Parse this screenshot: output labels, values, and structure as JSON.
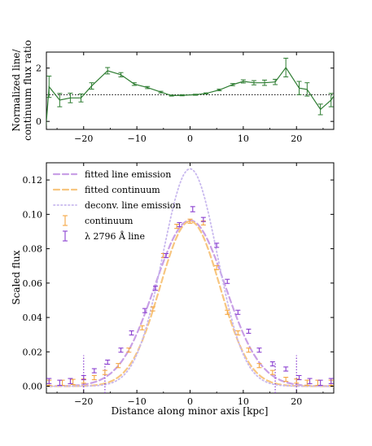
{
  "chart_data": [
    {
      "type": "line",
      "xlim": [
        -27,
        27
      ],
      "ylim": [
        -0.3,
        2.6
      ],
      "ylabel": [
        "Normalized line/",
        "continuum flux ratio"
      ],
      "xticks": [
        -20,
        -10,
        0,
        10,
        20
      ],
      "xtick_labels": [
        "−20",
        "−10",
        "0",
        "10",
        "20"
      ],
      "yticks": [
        0,
        2
      ],
      "ytick_labels": [
        "0",
        "2"
      ],
      "reference_line": 1.0,
      "series": [
        {
          "x": [
            -26.5,
            -24.5,
            -22.5,
            -20.5,
            -18.5,
            -15.5,
            -13,
            -10.5,
            -8,
            -5.5,
            -3.5,
            -1.5,
            1,
            3,
            5.5,
            8,
            10,
            12,
            14,
            16,
            18,
            20.5,
            22,
            24.5,
            26.5
          ],
          "y": [
            1.3,
            0.8,
            0.88,
            0.88,
            1.33,
            1.9,
            1.75,
            1.4,
            1.27,
            1.1,
            0.97,
            0.98,
            1.0,
            1.05,
            1.18,
            1.38,
            1.5,
            1.45,
            1.45,
            1.48,
            2.02,
            1.25,
            1.2,
            0.45,
            0.8
          ],
          "err": [
            0.4,
            0.25,
            0.18,
            0.15,
            0.12,
            0.12,
            0.08,
            0.05,
            0.04,
            0.03,
            0.02,
            0.02,
            0.02,
            0.02,
            0.03,
            0.04,
            0.06,
            0.08,
            0.1,
            0.1,
            0.35,
            0.25,
            0.25,
            0.2,
            0.25
          ]
        }
      ]
    },
    {
      "type": "line",
      "xlabel": "Distance along minor axis [kpc]",
      "ylabel": "Scaled flux",
      "xlim": [
        -27,
        27
      ],
      "ylim": [
        -0.004,
        0.13
      ],
      "xticks": [
        -20,
        -10,
        0,
        10,
        20
      ],
      "xtick_labels": [
        "−20",
        "−10",
        "0",
        "10",
        "20"
      ],
      "yticks": [
        0.0,
        0.02,
        0.04,
        0.06,
        0.08,
        0.1,
        0.12
      ],
      "ytick_labels": [
        "0.00",
        "0.02",
        "0.04",
        "0.06",
        "0.08",
        "0.10",
        "0.12"
      ],
      "legend_position": "upper-left",
      "legend": [
        "fitted line emission",
        "fitted continuum",
        "deconv. line emission",
        "continuum",
        "λ 2796 Å line"
      ],
      "curves": [
        {
          "name": "fitted line emission",
          "amplitude": 0.0965,
          "sigma": 6.6
        },
        {
          "name": "fitted continuum",
          "amplitude": 0.096,
          "sigma": 5.6
        },
        {
          "name": "deconv. line emission",
          "amplitude": 0.1265,
          "sigma": 5.1
        }
      ],
      "vertical_markers": [
        {
          "x": [
            -20,
            20
          ],
          "ymax": 0.018
        },
        {
          "x": [
            -16,
            16
          ],
          "ymax": 0.014
        }
      ],
      "continuum_points": {
        "x": [
          -26.5,
          -24,
          -22,
          -20,
          -18,
          -16,
          -13.5,
          -11.5,
          -9,
          -7,
          -5,
          -2.5,
          0,
          2.5,
          5,
          7,
          9,
          11,
          13,
          15.5,
          18,
          20,
          22,
          24,
          26.5
        ],
        "y": [
          0.002,
          0.002,
          0.0025,
          0.003,
          0.005,
          0.008,
          0.012,
          0.021,
          0.034,
          0.045,
          0.076,
          0.093,
          0.096,
          0.095,
          0.069,
          0.043,
          0.031,
          0.021,
          0.012,
          0.008,
          0.004,
          0.003,
          0.002,
          0.002,
          0.002
        ],
        "err": [
          0.0015,
          0.0015,
          0.0015,
          0.0012,
          0.0012,
          0.0012,
          0.0012,
          0.0012,
          0.0012,
          0.0012,
          0.0012,
          0.0012,
          0.0012,
          0.0012,
          0.0012,
          0.0012,
          0.0012,
          0.0012,
          0.0012,
          0.0012,
          0.0012,
          0.0012,
          0.0015,
          0.0015,
          0.0015
        ]
      },
      "line_points": {
        "x": [
          -26.5,
          -24.5,
          -22.5,
          -20,
          -18,
          -15.5,
          -13,
          -11,
          -8.5,
          -6.5,
          -4.5,
          -2,
          0.5,
          2.5,
          5,
          7,
          9,
          11,
          13,
          15.5,
          18,
          20.5,
          22.5,
          24.5,
          26.5
        ],
        "y": [
          0.003,
          0.002,
          0.003,
          0.005,
          0.009,
          0.014,
          0.021,
          0.031,
          0.044,
          0.057,
          0.076,
          0.094,
          0.103,
          0.097,
          0.082,
          0.061,
          0.043,
          0.032,
          0.021,
          0.013,
          0.01,
          0.005,
          0.003,
          0.002,
          0.003
        ],
        "err": [
          0.0015,
          0.0015,
          0.0015,
          0.0012,
          0.0012,
          0.0012,
          0.0012,
          0.0012,
          0.0012,
          0.0012,
          0.0012,
          0.0012,
          0.0015,
          0.0012,
          0.0012,
          0.0012,
          0.0012,
          0.0012,
          0.0012,
          0.0012,
          0.0012,
          0.0012,
          0.0015,
          0.0015,
          0.0015
        ]
      }
    }
  ],
  "colors": {
    "ratio": "#2e7d32",
    "continuum": "#f5a742",
    "line": "#8a3fd0",
    "fitted_line": "#c9a0e6",
    "fitted_continuum": "#f7c680",
    "deconv": "#c8b8ee",
    "reference": "#000000"
  }
}
